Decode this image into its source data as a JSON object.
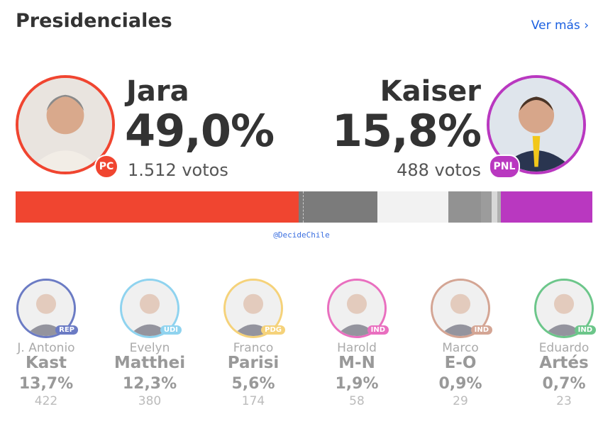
{
  "header": {
    "title": "Presidenciales",
    "more_label": "Ver más ›"
  },
  "leaders": [
    {
      "name": "Jara",
      "pct": "49,0%",
      "votes": "1.512 votos",
      "party": "PC",
      "color": "#f04530"
    },
    {
      "name": "Kaiser",
      "pct": "15,8%",
      "votes": "488 votos",
      "party": "PNL",
      "color": "#b938c0"
    }
  ],
  "bar": {
    "segments": [
      {
        "label": "Jara",
        "pct": 49.0,
        "color": "#f04530"
      },
      {
        "label": "Kast",
        "pct": 13.7,
        "color": "#7b7b7b"
      },
      {
        "label": "Matthei",
        "pct": 12.3,
        "color": "#f2f2f2"
      },
      {
        "label": "Parisi",
        "pct": 5.6,
        "color": "#929292"
      },
      {
        "label": "M-N",
        "pct": 1.9,
        "color": "#9c9c9c"
      },
      {
        "label": "E-O",
        "pct": 0.9,
        "color": "#d8d8d8"
      },
      {
        "label": "Artés",
        "pct": 0.7,
        "color": "#b0b0b0"
      },
      {
        "label": "Kaiser",
        "pct": 15.8,
        "color": "#b938c0"
      }
    ]
  },
  "credit": "@DecideChile",
  "candidates": [
    {
      "first": "J. Antonio",
      "last": "Kast",
      "pct": "13,7%",
      "votes": "422",
      "party": "REP",
      "color": "#6b7bc4"
    },
    {
      "first": "Evelyn",
      "last": "Matthei",
      "pct": "12,3%",
      "votes": "380",
      "party": "UDI",
      "color": "#8fd3ef"
    },
    {
      "first": "Franco",
      "last": "Parisi",
      "pct": "5,6%",
      "votes": "174",
      "party": "PDG",
      "color": "#f5d27a"
    },
    {
      "first": "Harold",
      "last": "M-N",
      "pct": "1,9%",
      "votes": "58",
      "party": "IND",
      "color": "#e96fbf"
    },
    {
      "first": "Marco",
      "last": "E-O",
      "pct": "0,9%",
      "votes": "29",
      "party": "IND",
      "color": "#d4a594"
    },
    {
      "first": "Eduardo",
      "last": "Artés",
      "pct": "0,7%",
      "votes": "23",
      "party": "IND",
      "color": "#6cc68a"
    }
  ]
}
